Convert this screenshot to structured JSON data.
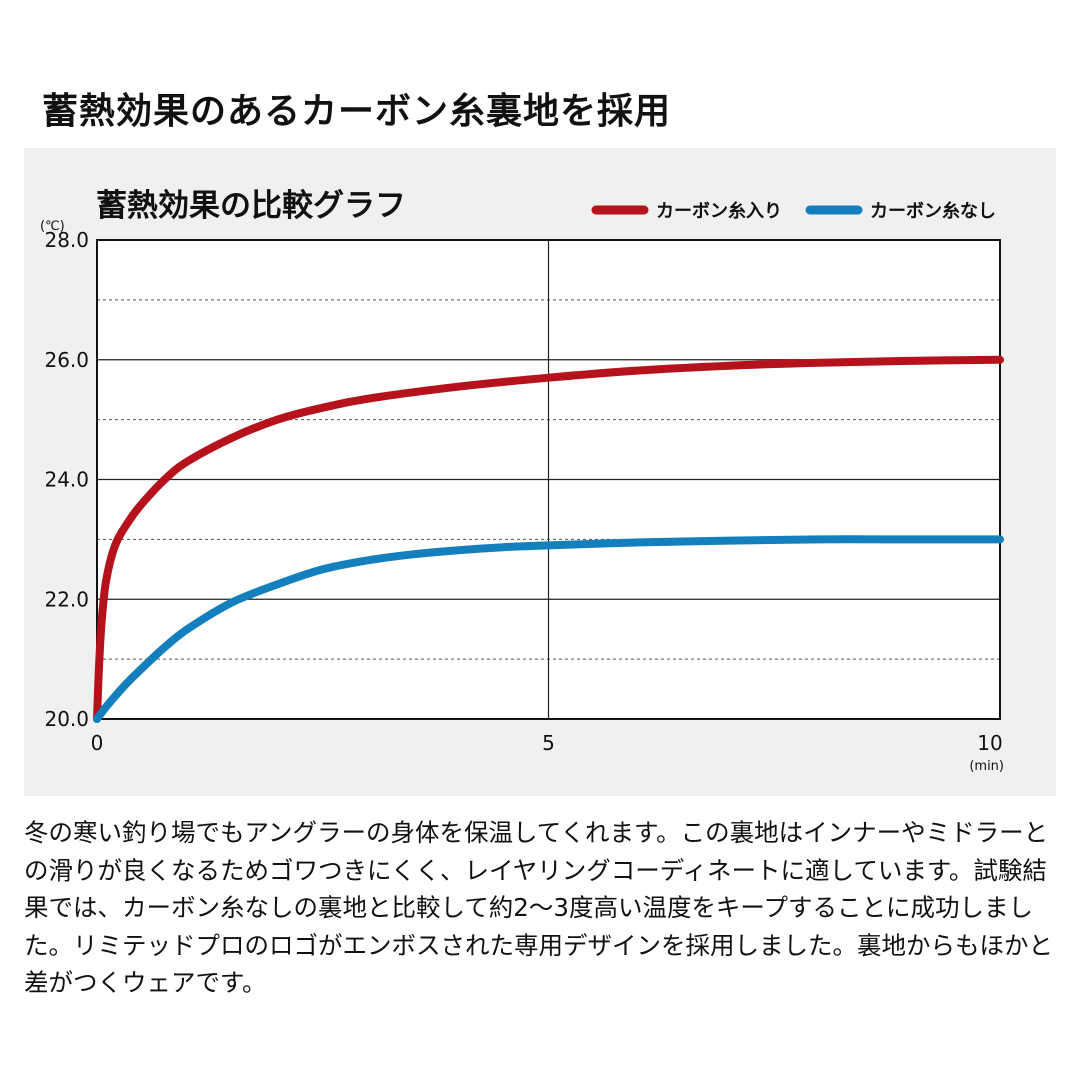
{
  "page": {
    "title": "蓄熱効果のあるカーボン糸裏地を採用",
    "description": "冬の寒い釣り場でもアングラーの身体を保温してくれます。この裏地はインナーやミドラーとの滑りが良くなるためゴワつきにくく、レイヤリングコーディネートに適しています。試験結果では、カーボン糸なしの裏地と比較して約2〜3度高い温度をキープすることに成功しました。リミテッドプロのロゴがエンボスされた専用デザインを採用しました。裏地からもほかと差がつくウェアです。"
  },
  "chart_data": {
    "type": "line",
    "title": "蓄熱効果の比較グラフ",
    "xlabel": "(min)",
    "ylabel": "(℃)",
    "xlim": [
      0,
      10
    ],
    "ylim": [
      20.0,
      28.0
    ],
    "x_ticks": [
      "0",
      "5",
      "10"
    ],
    "x_tick_values": [
      0,
      5,
      10
    ],
    "y_ticks": [
      "20.0",
      "22.0",
      "24.0",
      "26.0",
      "28.0"
    ],
    "y_tick_values": [
      20,
      22,
      24,
      26,
      28
    ],
    "legend_position": "top-right",
    "grid": true,
    "series": [
      {
        "name": "カーボン糸入り",
        "color": "#b5121b",
        "x": [
          0,
          0.02,
          0.05,
          0.1,
          0.2,
          0.35,
          0.5,
          0.75,
          1.0,
          1.5,
          2.0,
          2.5,
          3.0,
          4.0,
          5.0,
          6.0,
          7.0,
          8.0,
          9.0,
          10.0
        ],
        "y": [
          20.0,
          20.8,
          21.6,
          22.3,
          22.9,
          23.3,
          23.6,
          24.0,
          24.3,
          24.7,
          25.0,
          25.2,
          25.35,
          25.55,
          25.7,
          25.82,
          25.9,
          25.95,
          25.98,
          26.0
        ]
      },
      {
        "name": "カーボン糸なし",
        "color": "#1380bd",
        "x": [
          0,
          0.1,
          0.3,
          0.5,
          0.75,
          1.0,
          1.5,
          2.0,
          2.5,
          3.0,
          3.5,
          4.0,
          4.5,
          5.0,
          6.0,
          7.0,
          8.0,
          9.0,
          10.0
        ],
        "y": [
          20.0,
          20.2,
          20.55,
          20.85,
          21.2,
          21.5,
          21.95,
          22.25,
          22.5,
          22.65,
          22.75,
          22.82,
          22.87,
          22.9,
          22.95,
          22.98,
          23.0,
          23.0,
          23.0
        ]
      }
    ]
  }
}
